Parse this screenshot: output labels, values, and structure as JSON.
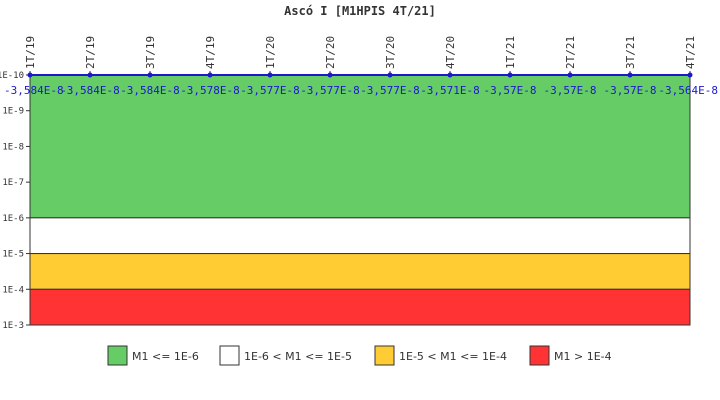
{
  "chart_data": {
    "type": "line",
    "title": "Ascó I [M1HPIS 4T/21]",
    "xlabel": "",
    "ylabel": "",
    "y_scale": "log",
    "y_axis_reversed": true,
    "ylim": [
      "1E-10",
      "1E-3"
    ],
    "y_ticks": [
      "1E-10",
      "1E-9",
      "1E-8",
      "1E-7",
      "1E-6",
      "1E-5",
      "1E-4",
      "1E-3"
    ],
    "categories": [
      "1T/19",
      "2T/19",
      "3T/19",
      "4T/19",
      "1T/20",
      "2T/20",
      "3T/20",
      "4T/20",
      "1T/21",
      "2T/21",
      "3T/21",
      "4T/21"
    ],
    "series": [
      {
        "color": "#1a1acc",
        "values": [
          -3.584e-08,
          -3.584e-08,
          -3.584e-08,
          -3.578e-08,
          -3.577e-08,
          -3.577e-08,
          -3.577e-08,
          -3.571e-08,
          -3.57e-08,
          -3.57e-08,
          -3.57e-08,
          -3.564e-08
        ],
        "labels": [
          "-3,584E-8",
          "-3,584E-8",
          "-3,584E-8",
          "-3,578E-8",
          "-3,577E-8",
          "-3,577E-8",
          "-3,577E-8",
          "-3,571E-8",
          "-3,57E-8",
          "-3,57E-8",
          "-3,57E-8",
          "-3,564E-8"
        ]
      }
    ],
    "bands": [
      {
        "from_exp": -10,
        "to_exp": -6,
        "color": "#66cc66",
        "label": "M1 <= 1E-6"
      },
      {
        "from_exp": -6,
        "to_exp": -5,
        "color": "#ffffff",
        "label": "1E-6 < M1 <= 1E-5"
      },
      {
        "from_exp": -5,
        "to_exp": -4,
        "color": "#ffcc33",
        "label": "1E-5 < M1 <= 1E-4"
      },
      {
        "from_exp": -4,
        "to_exp": -3,
        "color": "#ff3333",
        "label": "M1 > 1E-4"
      }
    ],
    "legend_position": "bottom",
    "grid": false
  }
}
